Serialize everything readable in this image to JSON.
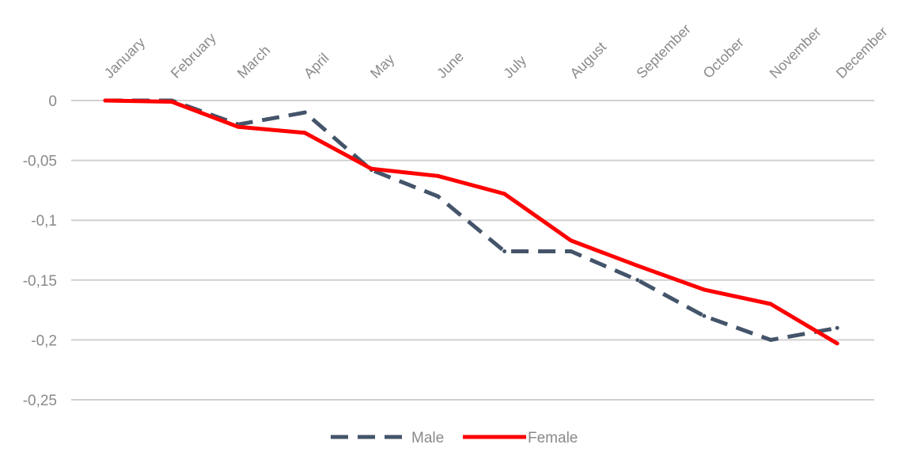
{
  "chart_data": {
    "type": "line",
    "categories": [
      "January",
      "February",
      "March",
      "April",
      "May",
      "June",
      "July",
      "August",
      "September",
      "October",
      "November",
      "December"
    ],
    "series": [
      {
        "name": "Male",
        "values": [
          0,
          0,
          -0.02,
          -0.01,
          -0.058,
          -0.08,
          -0.126,
          -0.126,
          -0.15,
          -0.18,
          -0.2,
          -0.19
        ],
        "color": "#44546a",
        "style": "dashed"
      },
      {
        "name": "Female",
        "values": [
          0,
          -0.001,
          -0.022,
          -0.027,
          -0.057,
          -0.063,
          -0.078,
          -0.117,
          -0.138,
          -0.158,
          -0.17,
          -0.203
        ],
        "color": "#ff0000",
        "style": "solid"
      }
    ],
    "y_ticks": [
      0,
      -0.05,
      -0.1,
      -0.15,
      -0.2,
      -0.25
    ],
    "y_tick_labels": [
      "0",
      "-0,05",
      "-0,1",
      "-0,15",
      "-0,2",
      "-0,25"
    ],
    "ylim": [
      -0.25,
      0
    ],
    "grid": true,
    "legend_position": "bottom",
    "title": "",
    "xlabel": "",
    "ylabel": ""
  }
}
